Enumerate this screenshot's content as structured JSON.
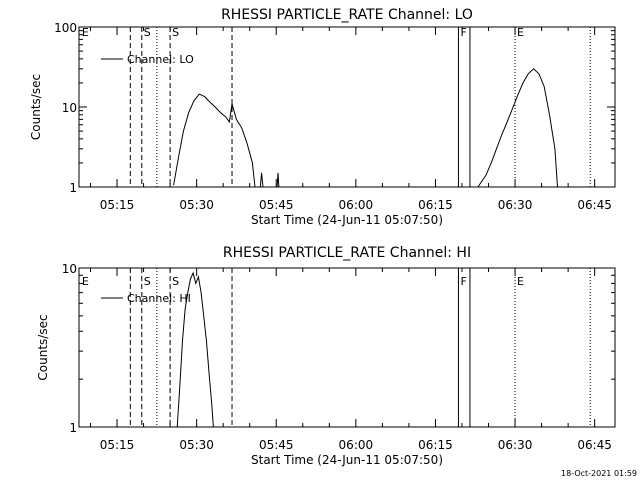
{
  "chart_data": [
    {
      "type": "line",
      "title": "RHESSI PARTICLE_RATE Channel: LO",
      "xlabel": "Start Time (24-Jun-11 05:07:50)",
      "ylabel": "Counts/sec",
      "y_scale": "log",
      "ylim": [
        1,
        100
      ],
      "y_ticks": [
        {
          "v": 1,
          "label": "1"
        },
        {
          "v": 10,
          "label": "10"
        },
        {
          "v": 100,
          "label": "100"
        }
      ],
      "xlim": [
        "05:07:50",
        "06:48:50"
      ],
      "x_ticks": [
        "05:15",
        "05:30",
        "05:45",
        "06:00",
        "06:15",
        "06:30",
        "06:45"
      ],
      "legend": {
        "label": "Channel: LO",
        "position": "top-left"
      },
      "markers": [
        {
          "time": "05:08:00",
          "style": "none",
          "label": "E"
        },
        {
          "time": "05:17:30",
          "style": "dashed",
          "label": ""
        },
        {
          "time": "05:19:40",
          "style": "dashed",
          "label": "S"
        },
        {
          "time": "05:22:30",
          "style": "dotted",
          "label": ""
        },
        {
          "time": "05:25:00",
          "style": "dashed",
          "label": "S"
        },
        {
          "time": "05:36:40",
          "style": "dashed",
          "label": ""
        },
        {
          "time": "06:19:20",
          "style": "solid",
          "label": "F"
        },
        {
          "time": "06:21:30",
          "style": "solid",
          "label": ""
        },
        {
          "time": "06:30:00",
          "style": "dotted",
          "label": "E"
        },
        {
          "time": "06:44:10",
          "style": "dotted",
          "label": ""
        }
      ],
      "series": [
        {
          "name": "Channel: LO",
          "segments": [
            {
              "x": [
                "05:25:40",
                "05:26:30",
                "05:27:30",
                "05:28:30",
                "05:29:30",
                "05:30:30",
                "05:31:30",
                "05:32:30",
                "05:33:30",
                "05:34:30",
                "05:35:30",
                "05:36:10",
                "05:36:40",
                "05:37:30",
                "05:38:30",
                "05:39:30",
                "05:40:30",
                "05:41:00"
              ],
              "y": [
                1.05,
                2.2,
                5,
                8.5,
                12,
                14.5,
                13.5,
                11.5,
                10,
                8.5,
                7.5,
                6.5,
                11,
                7,
                5.5,
                3.5,
                2,
                1
              ]
            },
            {
              "x": [
                "05:42:00",
                "05:42:15",
                "05:42:30"
              ],
              "y": [
                1,
                1.5,
                1
              ]
            },
            {
              "x": [
                "05:45:10",
                "05:45:20",
                "05:45:30"
              ],
              "y": [
                1,
                1.5,
                1
              ]
            },
            {
              "x": [
                "06:23:00",
                "06:24:30",
                "06:25:30",
                "06:26:30",
                "06:27:30",
                "06:28:30",
                "06:29:30",
                "06:30:30",
                "06:31:30",
                "06:32:30",
                "06:33:30",
                "06:34:30",
                "06:35:30",
                "06:36:30",
                "06:37:30",
                "06:38:00"
              ],
              "y": [
                1,
                1.4,
                2,
                3,
                4.5,
                6.5,
                9.5,
                14,
                20,
                26,
                30,
                26,
                18,
                8,
                3,
                1
              ]
            }
          ]
        }
      ]
    },
    {
      "type": "line",
      "title": "RHESSI PARTICLE_RATE Channel: HI",
      "xlabel": "Start Time (24-Jun-11 05:07:50)",
      "ylabel": "Counts/sec",
      "y_scale": "log",
      "ylim": [
        1,
        10
      ],
      "y_ticks": [
        {
          "v": 1,
          "label": "1"
        },
        {
          "v": 10,
          "label": "10"
        }
      ],
      "xlim": [
        "05:07:50",
        "06:48:50"
      ],
      "x_ticks": [
        "05:15",
        "05:30",
        "05:45",
        "06:00",
        "06:15",
        "06:30",
        "06:45"
      ],
      "legend": {
        "label": "Channel: HI",
        "position": "top-left"
      },
      "markers": [
        {
          "time": "05:08:00",
          "style": "none",
          "label": "E"
        },
        {
          "time": "05:17:30",
          "style": "dashed",
          "label": ""
        },
        {
          "time": "05:19:40",
          "style": "dashed",
          "label": "S"
        },
        {
          "time": "05:22:30",
          "style": "dotted",
          "label": ""
        },
        {
          "time": "05:25:00",
          "style": "dashed",
          "label": "S"
        },
        {
          "time": "05:36:40",
          "style": "dashed",
          "label": ""
        },
        {
          "time": "06:19:20",
          "style": "solid",
          "label": "F"
        },
        {
          "time": "06:21:30",
          "style": "solid",
          "label": ""
        },
        {
          "time": "06:30:00",
          "style": "dotted",
          "label": "E"
        },
        {
          "time": "06:44:10",
          "style": "dotted",
          "label": ""
        }
      ],
      "series": [
        {
          "name": "Channel: HI",
          "segments": [
            {
              "x": [
                "05:26:20",
                "05:26:50",
                "05:27:20",
                "05:27:50",
                "05:28:20",
                "05:28:50",
                "05:29:20",
                "05:29:50",
                "05:30:20",
                "05:30:50",
                "05:31:20",
                "05:31:50",
                "05:32:20",
                "05:32:50",
                "05:33:10"
              ],
              "y": [
                1,
                1.8,
                3.5,
                5.5,
                7,
                8.5,
                9.3,
                8,
                8.8,
                7,
                5,
                3.5,
                2.2,
                1.4,
                1
              ]
            }
          ]
        }
      ]
    }
  ],
  "footer": {
    "timestamp": "18-Oct-2021 01:59"
  }
}
